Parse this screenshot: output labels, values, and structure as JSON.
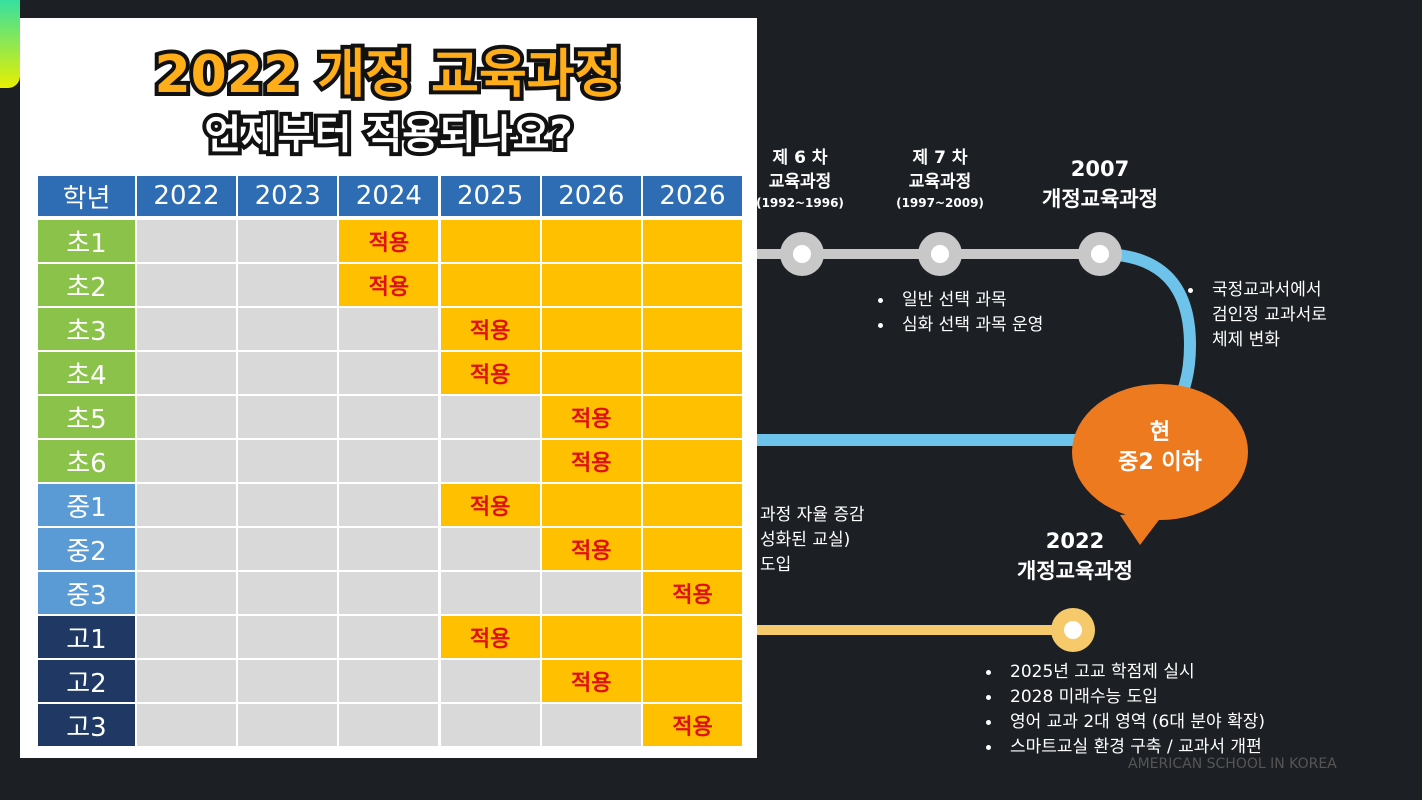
{
  "table": {
    "title": "2022 개정 교육과정",
    "subtitle": "언제부터 적용되나요?",
    "header": [
      "학년",
      "2022",
      "2023",
      "2024",
      "2025",
      "2026",
      "2026"
    ],
    "header_color": "#2e6db4",
    "rows": [
      {
        "label": "초1",
        "color": "#8bc34a",
        "cells": [
          null,
          null,
          "적용",
          null,
          null,
          null
        ]
      },
      {
        "label": "초2",
        "color": "#8bc34a",
        "cells": [
          null,
          null,
          "적용",
          null,
          null,
          null
        ]
      },
      {
        "label": "초3",
        "color": "#8bc34a",
        "cells": [
          null,
          null,
          null,
          "적용",
          null,
          null
        ]
      },
      {
        "label": "초4",
        "color": "#8bc34a",
        "cells": [
          null,
          null,
          null,
          "적용",
          null,
          null
        ]
      },
      {
        "label": "초5",
        "color": "#8bc34a",
        "cells": [
          null,
          null,
          null,
          null,
          "적용",
          null
        ]
      },
      {
        "label": "초6",
        "color": "#8bc34a",
        "cells": [
          null,
          null,
          null,
          null,
          "적용",
          null
        ]
      },
      {
        "label": "중1",
        "color": "#5b9bd5",
        "cells": [
          null,
          null,
          null,
          "적용",
          null,
          null
        ]
      },
      {
        "label": "중2",
        "color": "#5b9bd5",
        "cells": [
          null,
          null,
          null,
          null,
          "적용",
          null
        ]
      },
      {
        "label": "중3",
        "color": "#5b9bd5",
        "cells": [
          null,
          null,
          null,
          null,
          null,
          "적용"
        ]
      },
      {
        "label": "고1",
        "color": "#1f3864",
        "cells": [
          null,
          null,
          null,
          "적용",
          null,
          null
        ]
      },
      {
        "label": "고2",
        "color": "#1f3864",
        "cells": [
          null,
          null,
          null,
          null,
          "적용",
          null
        ]
      },
      {
        "label": "고3",
        "color": "#1f3864",
        "cells": [
          null,
          null,
          null,
          null,
          null,
          "적용"
        ]
      }
    ]
  },
  "timeline": {
    "stage6": [
      "제 6 차",
      "교육과정",
      "(1992~1996)"
    ],
    "stage7": [
      "제 7 차",
      "교육과정",
      "(1997~2009)"
    ],
    "rev2007": [
      "2007",
      "개정교육과정"
    ],
    "notes7": [
      "일반 선택 과목",
      "심화 선택 과목 운영"
    ],
    "notes2007": [
      "국정교과서에서",
      "검인정 교과서로",
      "체제 변화"
    ],
    "current": [
      "현",
      "중2 이하"
    ],
    "partial": [
      "과정 자율 증감",
      "성화된 교실)",
      "도입"
    ],
    "rev2022": [
      "2022",
      "개정교육과정"
    ],
    "notes2022": [
      "2025년 고교 학점제 실시",
      "2028 미래수능 도입",
      "영어 교과 2대 영역 (6대 분야 확장)",
      "스마트교실 환경 구축 / 교과서 개편"
    ],
    "watermark": "AMERICAN SCHOOL IN KOREA"
  }
}
